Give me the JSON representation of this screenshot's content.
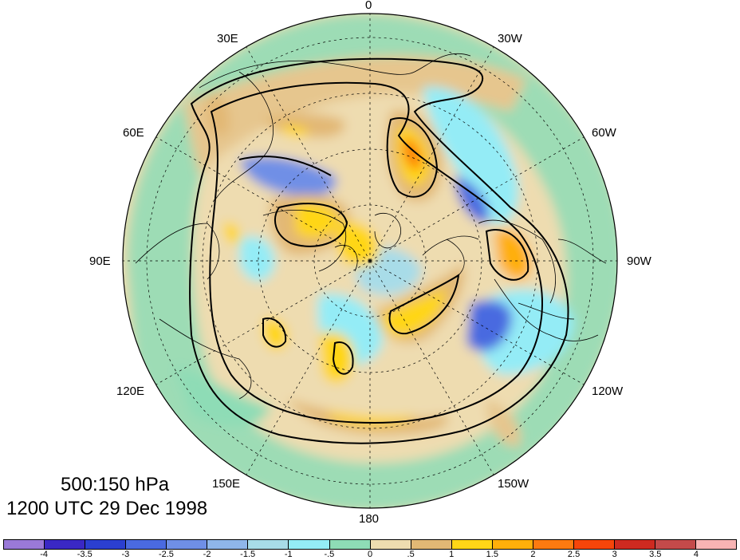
{
  "title": {
    "level": "500:150 hPa",
    "time": "1200 UTC 29 Dec 1998"
  },
  "longitude_labels": {
    "lon_0": "0",
    "lon_30w": "30W",
    "lon_60w": "60W",
    "lon_90w": "90W",
    "lon_120w": "120W",
    "lon_150w": "150W",
    "lon_180": "180",
    "lon_150e": "150E",
    "lon_120e": "120E",
    "lon_90e": "90E",
    "lon_60e": "60E",
    "lon_30e": "30E"
  },
  "colorbar": {
    "ticks": [
      "-4",
      "-3.5",
      "-3",
      "-2.5",
      "-2",
      "-1.5",
      "-1",
      "-.5",
      "0",
      ".5",
      "1",
      "1.5",
      "2",
      "2.5",
      "3",
      "3.5",
      "4"
    ],
    "colors": [
      "#9a79d8",
      "#3a28c4",
      "#2b3fd0",
      "#4a6ae0",
      "#6f8fe6",
      "#8fb6ea",
      "#a8dce8",
      "#94ecf6",
      "#8edcb6",
      "#eedcb0",
      "#e2b875",
      "#ffd617",
      "#ffaf0a",
      "#fd7a10",
      "#f7450a",
      "#cf2a20",
      "#c44a4a",
      "#f8b4b4"
    ]
  }
}
